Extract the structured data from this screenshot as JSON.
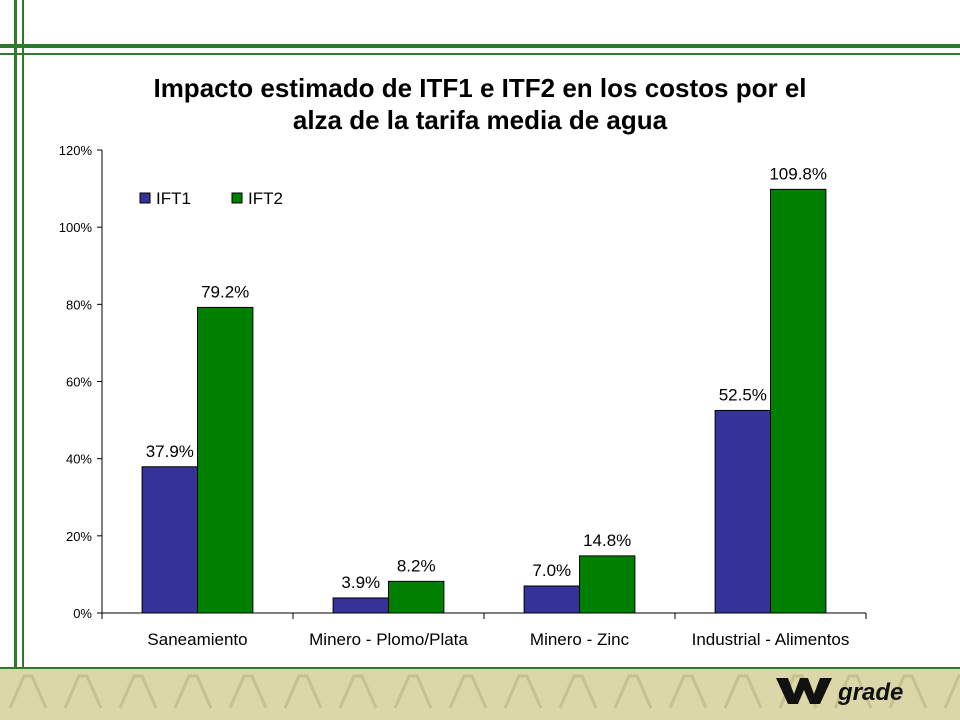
{
  "slide": {
    "title_line1": "Impacto estimado de ITF1 e ITF2 en los costos por el",
    "title_line2": "alza de la tarifa media de agua",
    "logo_text": "grade",
    "colors": {
      "frame_green": "#2d7a2d",
      "footer_band": "#dcd7a8",
      "series_1": "#333399",
      "series_2": "#008000"
    }
  },
  "chart_data": {
    "type": "bar",
    "title": "Impacto estimado de ITF1 e ITF2 en los costos por el alza de la tarifa media de agua",
    "categories": [
      "Saneamiento",
      "Minero - Plomo/Plata",
      "Minero - Zinc",
      "Industrial - Alimentos"
    ],
    "series": [
      {
        "name": "IFT1",
        "values": [
          37.9,
          3.9,
          7.0,
          52.5
        ],
        "labels": [
          "37.9%",
          "3.9%",
          "7.0%",
          "52.5%"
        ],
        "color": "#333399"
      },
      {
        "name": "IFT2",
        "values": [
          79.2,
          8.2,
          14.8,
          109.8
        ],
        "labels": [
          "79.2%",
          "8.2%",
          "14.8%",
          "109.8%"
        ],
        "color": "#008000"
      }
    ],
    "yticks": [
      "0%",
      "20%",
      "40%",
      "60%",
      "80%",
      "100%",
      "120%"
    ],
    "ylim": [
      0,
      120
    ],
    "unit": "%",
    "legend_position": "top-left",
    "grid": false
  }
}
